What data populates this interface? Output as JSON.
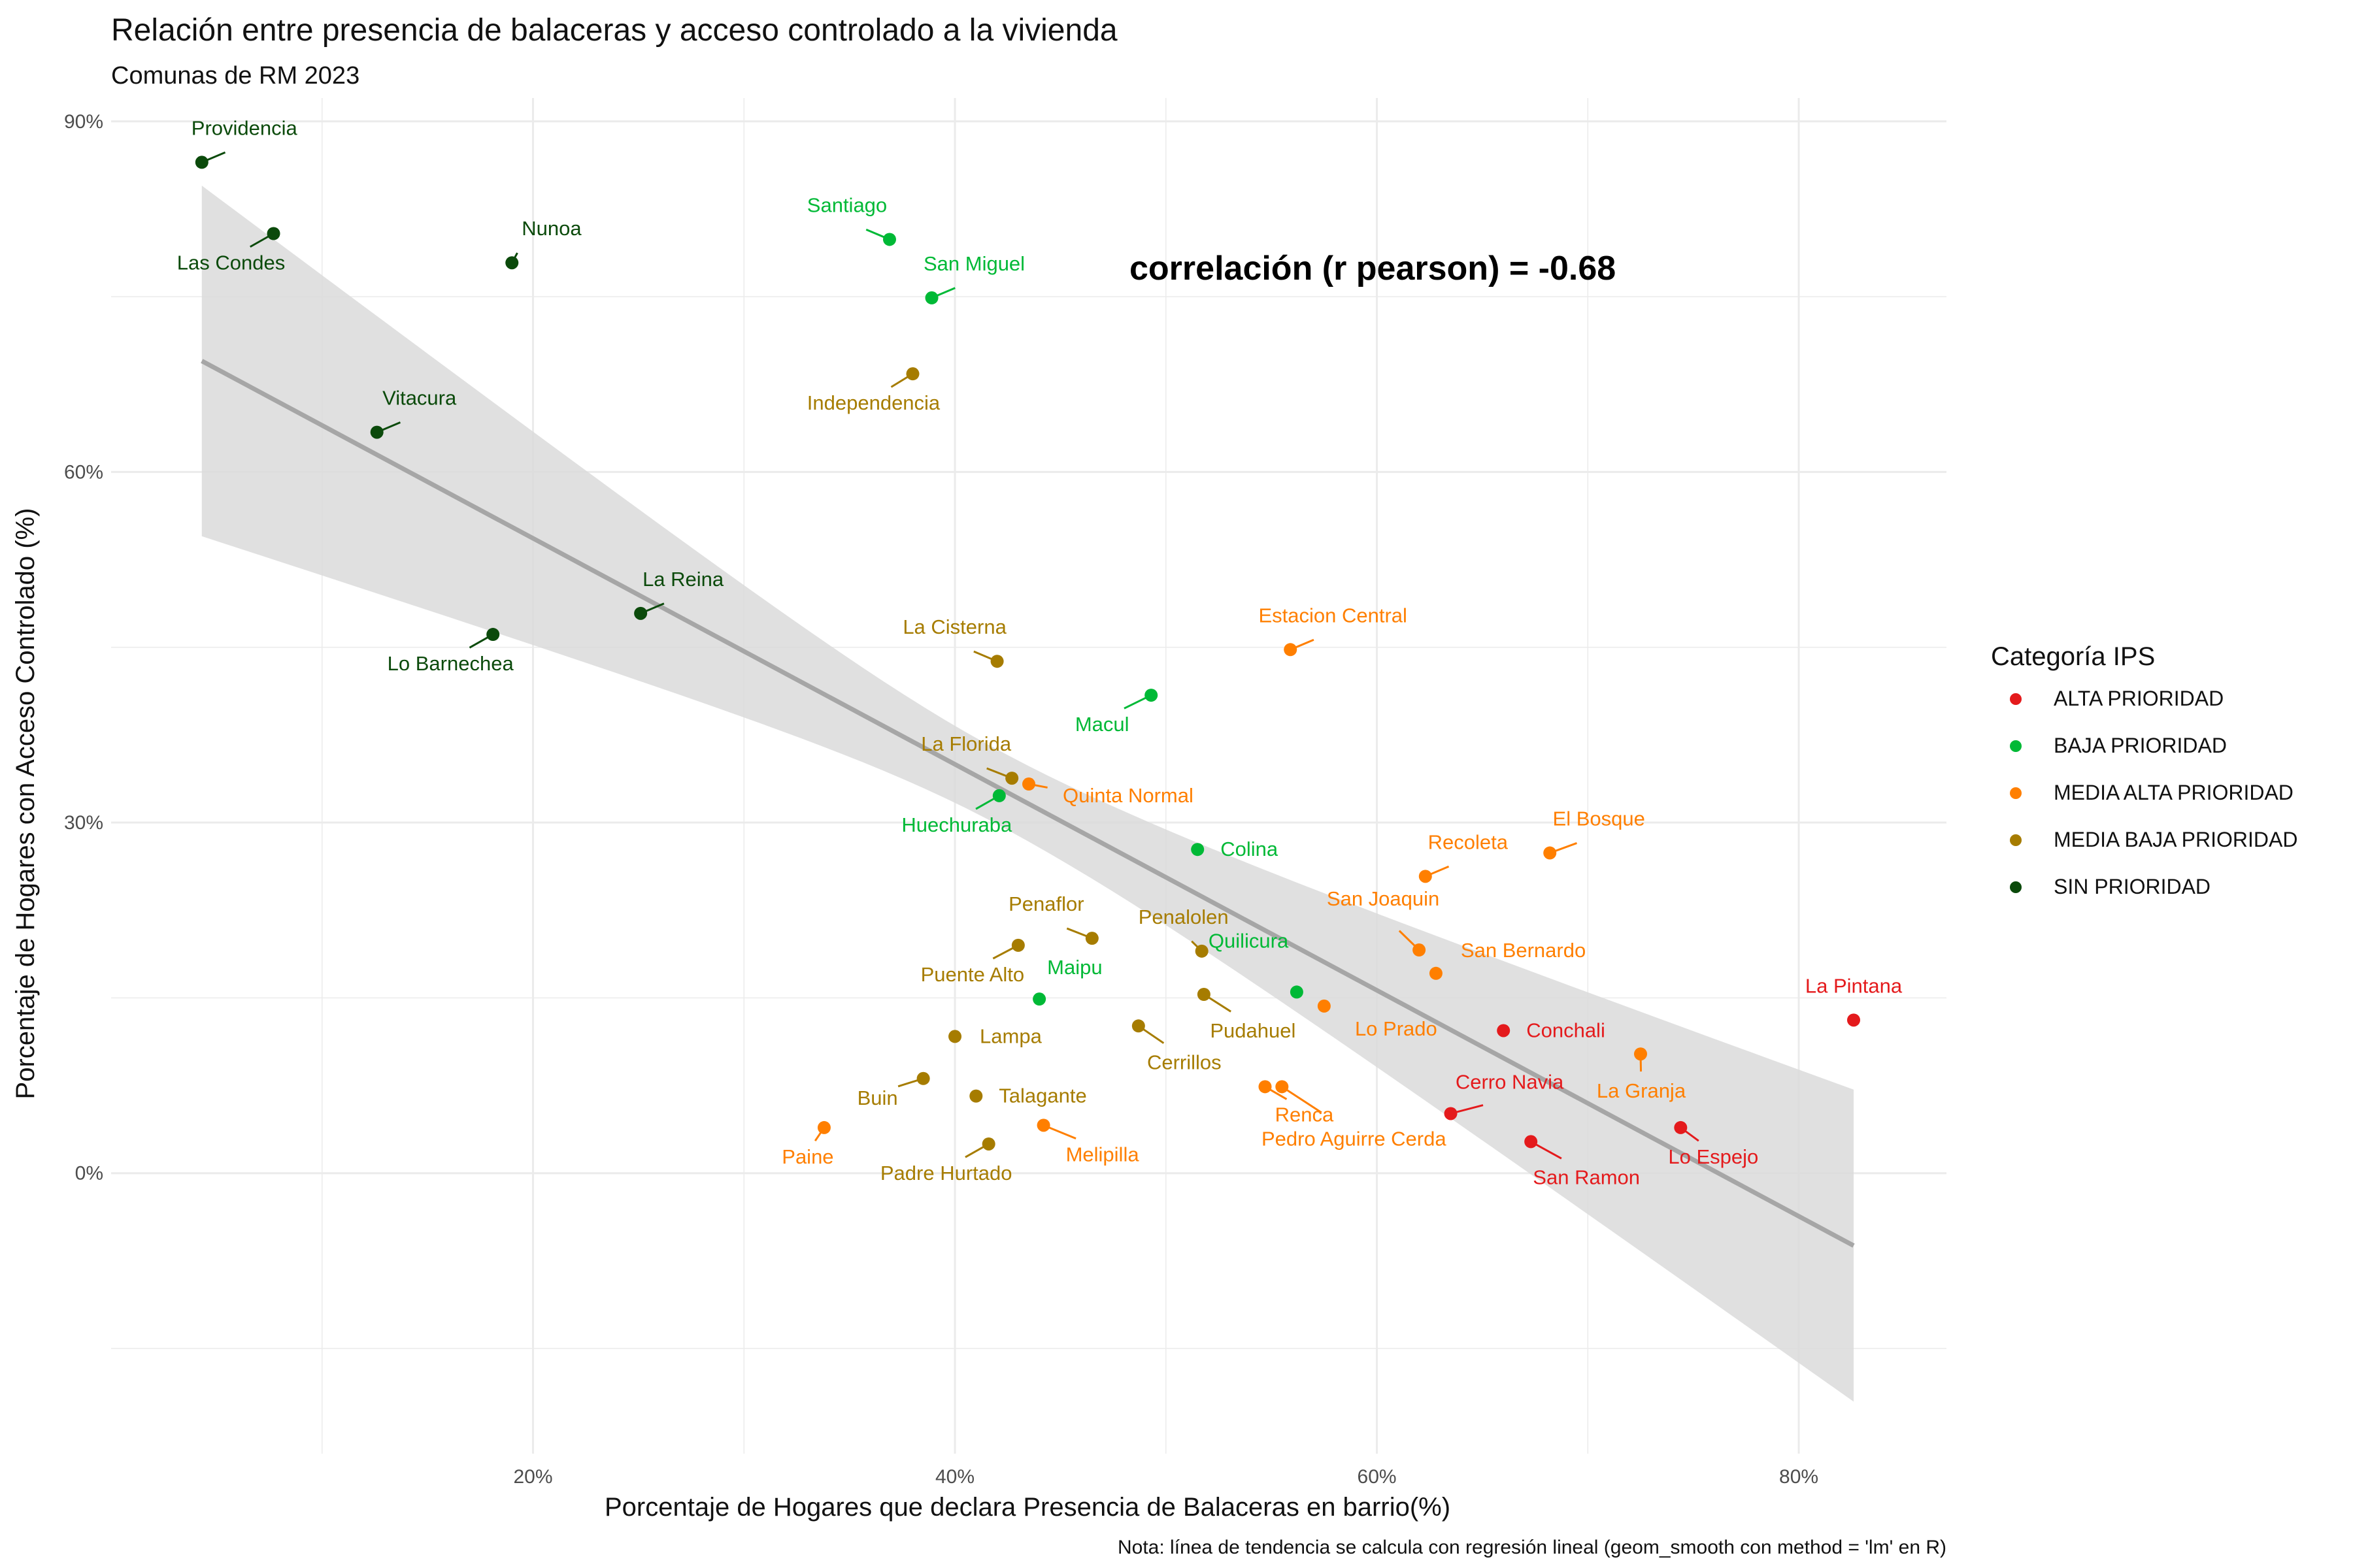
{
  "chart_data": {
    "type": "scatter",
    "title": "Relación entre presencia de balaceras y acceso controlado a la vivienda",
    "subtitle": "Comunas de RM 2023",
    "xlabel": "Porcentaje de Hogares que declara Presencia de Balaceras en barrio(%)",
    "ylabel": "Porcentaje de Hogares con Acceso Controlado (%)",
    "caption": "Nota: línea de tendencia se calcula con regresión lineal (geom_smooth con method = 'lm' en R)",
    "annotation": "correlación (r pearson) = -0.68",
    "xlim": [
      0.0,
      0.87
    ],
    "ylim": [
      -0.24,
      0.92
    ],
    "x_ticks": [
      {
        "value": 0.2,
        "label": "20%"
      },
      {
        "value": 0.4,
        "label": "40%"
      },
      {
        "value": 0.6,
        "label": "60%"
      },
      {
        "value": 0.8,
        "label": "80%"
      }
    ],
    "y_ticks": [
      {
        "value": 0.0,
        "label": "0%"
      },
      {
        "value": 0.3,
        "label": "30%"
      },
      {
        "value": 0.6,
        "label": "60%"
      },
      {
        "value": 0.9,
        "label": "90%"
      }
    ],
    "grid": true,
    "legend": {
      "title": "Categoría IPS",
      "position": "right",
      "entries": [
        {
          "name": "ALTA PRIORIDAD",
          "color": "#e41a1c"
        },
        {
          "name": "BAJA PRIORIDAD",
          "color": "#00b936"
        },
        {
          "name": "MEDIA ALTA PRIORIDAD",
          "color": "#ff7f00"
        },
        {
          "name": "MEDIA BAJA PRIORIDAD",
          "color": "#a67c00"
        },
        {
          "name": "SIN PRIORIDAD",
          "color": "#0b4a0b"
        }
      ]
    },
    "trend": {
      "x": [
        0.043,
        0.826
      ],
      "y": [
        0.695,
        -0.062
      ],
      "band_upper": [
        0.845,
        0.072
      ],
      "band_lower": [
        0.545,
        -0.195
      ],
      "line_color": "#a6a6a6",
      "band_color": "#dadada"
    },
    "points": [
      {
        "name": "Providencia",
        "x": 0.043,
        "y": 0.865,
        "category": "SIN PRIORIDAD"
      },
      {
        "name": "Las Condes",
        "x": 0.077,
        "y": 0.804,
        "category": "SIN PRIORIDAD"
      },
      {
        "name": "Nunoa",
        "x": 0.19,
        "y": 0.779,
        "category": "SIN PRIORIDAD"
      },
      {
        "name": "Vitacura",
        "x": 0.126,
        "y": 0.634,
        "category": "SIN PRIORIDAD"
      },
      {
        "name": "La Reina",
        "x": 0.251,
        "y": 0.479,
        "category": "SIN PRIORIDAD"
      },
      {
        "name": "Lo Barnechea",
        "x": 0.181,
        "y": 0.461,
        "category": "SIN PRIORIDAD"
      },
      {
        "name": "Santiago",
        "x": 0.369,
        "y": 0.799,
        "category": "BAJA PRIORIDAD"
      },
      {
        "name": "San Miguel",
        "x": 0.389,
        "y": 0.749,
        "category": "BAJA PRIORIDAD"
      },
      {
        "name": "Macul",
        "x": 0.493,
        "y": 0.409,
        "category": "BAJA PRIORIDAD"
      },
      {
        "name": "Huechuraba",
        "x": 0.421,
        "y": 0.323,
        "category": "BAJA PRIORIDAD"
      },
      {
        "name": "Colina",
        "x": 0.515,
        "y": 0.277,
        "category": "BAJA PRIORIDAD"
      },
      {
        "name": "Quilicura",
        "x": 0.562,
        "y": 0.155,
        "category": "BAJA PRIORIDAD"
      },
      {
        "name": "Maipu",
        "x": 0.44,
        "y": 0.149,
        "category": "BAJA PRIORIDAD"
      },
      {
        "name": "Independencia",
        "x": 0.38,
        "y": 0.684,
        "category": "MEDIA BAJA PRIORIDAD"
      },
      {
        "name": "La Cisterna",
        "x": 0.42,
        "y": 0.438,
        "category": "MEDIA BAJA PRIORIDAD"
      },
      {
        "name": "La Florida",
        "x": 0.427,
        "y": 0.338,
        "category": "MEDIA BAJA PRIORIDAD"
      },
      {
        "name": "Penaflor",
        "x": 0.465,
        "y": 0.201,
        "category": "MEDIA BAJA PRIORIDAD"
      },
      {
        "name": "Penalolen",
        "x": 0.517,
        "y": 0.19,
        "category": "MEDIA BAJA PRIORIDAD"
      },
      {
        "name": "Puente Alto",
        "x": 0.43,
        "y": 0.195,
        "category": "MEDIA BAJA PRIORIDAD"
      },
      {
        "name": "Pudahuel",
        "x": 0.518,
        "y": 0.153,
        "category": "MEDIA BAJA PRIORIDAD"
      },
      {
        "name": "Lampa",
        "x": 0.4,
        "y": 0.117,
        "category": "MEDIA BAJA PRIORIDAD"
      },
      {
        "name": "Cerrillos",
        "x": 0.487,
        "y": 0.126,
        "category": "MEDIA BAJA PRIORIDAD"
      },
      {
        "name": "Buin",
        "x": 0.385,
        "y": 0.081,
        "category": "MEDIA BAJA PRIORIDAD"
      },
      {
        "name": "Talagante",
        "x": 0.41,
        "y": 0.066,
        "category": "MEDIA BAJA PRIORIDAD"
      },
      {
        "name": "Padre Hurtado",
        "x": 0.416,
        "y": 0.025,
        "category": "MEDIA BAJA PRIORIDAD"
      },
      {
        "name": "Quinta Normal",
        "x": 0.435,
        "y": 0.333,
        "category": "MEDIA ALTA PRIORIDAD"
      },
      {
        "name": "Estacion Central",
        "x": 0.559,
        "y": 0.448,
        "category": "MEDIA ALTA PRIORIDAD"
      },
      {
        "name": "Recoleta",
        "x": 0.623,
        "y": 0.254,
        "category": "MEDIA ALTA PRIORIDAD"
      },
      {
        "name": "El Bosque",
        "x": 0.682,
        "y": 0.274,
        "category": "MEDIA ALTA PRIORIDAD"
      },
      {
        "name": "San Joaquin",
        "x": 0.62,
        "y": 0.191,
        "category": "MEDIA ALTA PRIORIDAD"
      },
      {
        "name": "San Bernardo",
        "x": 0.628,
        "y": 0.171,
        "category": "MEDIA ALTA PRIORIDAD"
      },
      {
        "name": "Lo Prado",
        "x": 0.575,
        "y": 0.143,
        "category": "MEDIA ALTA PRIORIDAD"
      },
      {
        "name": "La Granja",
        "x": 0.725,
        "y": 0.102,
        "category": "MEDIA ALTA PRIORIDAD"
      },
      {
        "name": "Renca",
        "x": 0.547,
        "y": 0.074,
        "category": "MEDIA ALTA PRIORIDAD"
      },
      {
        "name": "Pedro Aguirre Cerda",
        "x": 0.555,
        "y": 0.074,
        "category": "MEDIA ALTA PRIORIDAD"
      },
      {
        "name": "Melipilla",
        "x": 0.442,
        "y": 0.041,
        "category": "MEDIA ALTA PRIORIDAD"
      },
      {
        "name": "Paine",
        "x": 0.338,
        "y": 0.039,
        "category": "MEDIA ALTA PRIORIDAD"
      },
      {
        "name": "La Pintana",
        "x": 0.826,
        "y": 0.131,
        "category": "ALTA PRIORIDAD"
      },
      {
        "name": "Conchali",
        "x": 0.66,
        "y": 0.122,
        "category": "ALTA PRIORIDAD"
      },
      {
        "name": "Cerro Navia",
        "x": 0.635,
        "y": 0.051,
        "category": "ALTA PRIORIDAD"
      },
      {
        "name": "San Ramon",
        "x": 0.673,
        "y": 0.027,
        "category": "ALTA PRIORIDAD"
      },
      {
        "name": "Lo Espejo",
        "x": 0.744,
        "y": 0.039,
        "category": "ALTA PRIORIDAD"
      }
    ]
  }
}
